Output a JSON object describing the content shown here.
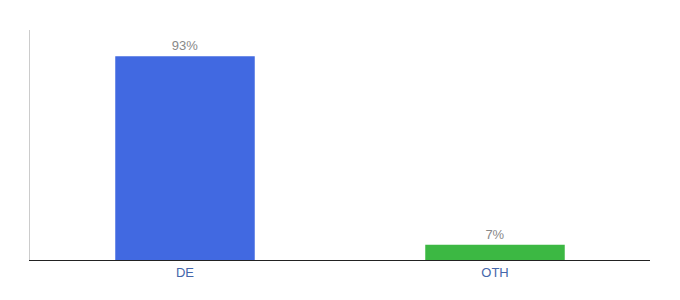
{
  "chart_data": {
    "type": "bar",
    "categories": [
      "DE",
      "OTH"
    ],
    "values": [
      93,
      7
    ],
    "value_labels": [
      "93%",
      "7%"
    ],
    "colors": [
      "#4169E1",
      "#3CB843"
    ],
    "ylim": [
      0,
      105
    ],
    "data_labels": true,
    "tick_labels": "x",
    "grid": false
  }
}
